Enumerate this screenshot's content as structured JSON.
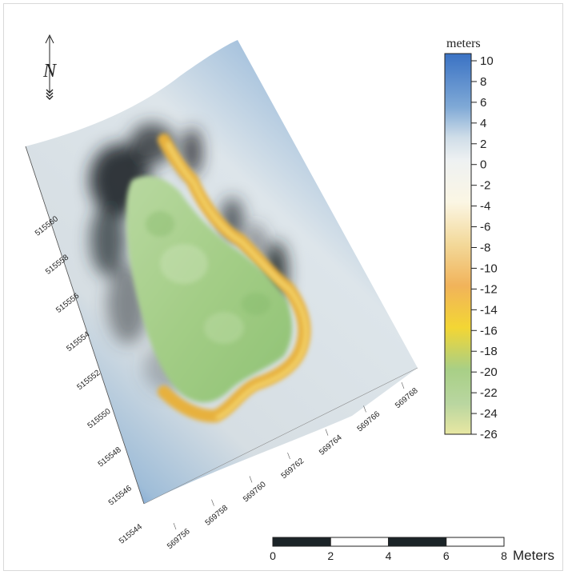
{
  "north_arrow": {
    "label": "N",
    "icon": "north-arrow-icon"
  },
  "legend": {
    "title": "meters",
    "ticks": [
      "10",
      "8",
      "6",
      "4",
      "2",
      "0",
      "-2",
      "-4",
      "-6",
      "-8",
      "-10",
      "-12",
      "-14",
      "-16",
      "-18",
      "-20",
      "-22",
      "-24",
      "-26"
    ],
    "colors": [
      {
        "value": 10,
        "color": "#3a72c4"
      },
      {
        "value": 6,
        "color": "#7fa9d6"
      },
      {
        "value": 2,
        "color": "#cfdde8"
      },
      {
        "value": 0,
        "color": "#eef1f2"
      },
      {
        "value": -4,
        "color": "#fbf6e4"
      },
      {
        "value": -8,
        "color": "#f3d99a"
      },
      {
        "value": -12,
        "color": "#f1b35a"
      },
      {
        "value": -16,
        "color": "#f3d634"
      },
      {
        "value": -20,
        "color": "#a8cf86"
      },
      {
        "value": -23,
        "color": "#b9d6a0"
      },
      {
        "value": -26,
        "color": "#e8e7a2"
      }
    ]
  },
  "northing_axis": {
    "ticks": [
      "515560",
      "515558",
      "515556",
      "515554",
      "515552",
      "515550",
      "515548",
      "515546",
      "515544"
    ]
  },
  "easting_axis": {
    "ticks": [
      "569756",
      "569758",
      "569760",
      "569762",
      "569764",
      "569766",
      "569768"
    ]
  },
  "scale_bar": {
    "ticks": [
      "0",
      "2",
      "4",
      "6",
      "8"
    ],
    "unit": "Meters",
    "segment_colors": [
      "#1b2428",
      "#ffffff",
      "#1b2428",
      "#ffffff"
    ]
  }
}
